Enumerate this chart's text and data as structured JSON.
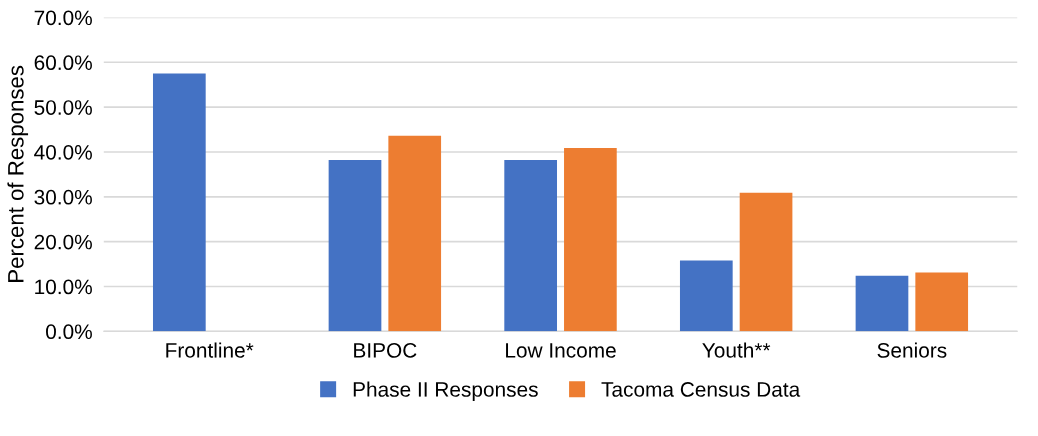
{
  "chart_data": {
    "type": "bar",
    "ylabel": "Percent of Responses",
    "categories": [
      "Frontline*",
      "BIPOC",
      "Low Income",
      "Youth**",
      "Seniors"
    ],
    "series": [
      {
        "name": "Phase II Responses",
        "color": "#4472c4",
        "values": [
          57.5,
          38.2,
          38.2,
          15.8,
          12.4
        ]
      },
      {
        "name": "Tacoma Census Data",
        "color": "#ed7d31",
        "values": [
          null,
          43.6,
          40.9,
          30.9,
          13.1
        ]
      }
    ],
    "ylim": [
      0,
      70
    ],
    "yticks": [
      {
        "value": 0,
        "label": "0.0%"
      },
      {
        "value": 10,
        "label": "10.0%"
      },
      {
        "value": 20,
        "label": "20.0%"
      },
      {
        "value": 30,
        "label": "30.0%"
      },
      {
        "value": 40,
        "label": "40.0%"
      },
      {
        "value": 50,
        "label": "50.0%"
      },
      {
        "value": 60,
        "label": "60.0%"
      },
      {
        "value": 70,
        "label": "70.0%"
      }
    ],
    "grid": "y",
    "legend": "bottom"
  }
}
